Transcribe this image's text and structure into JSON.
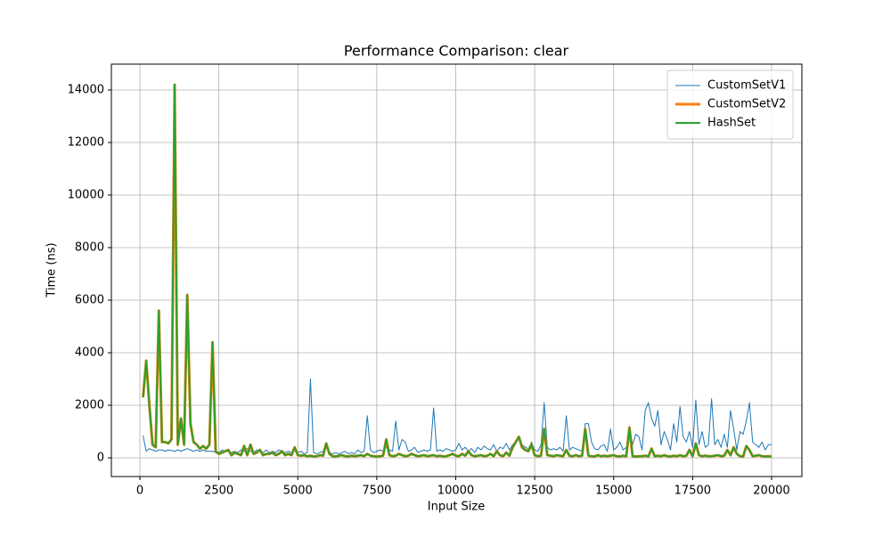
{
  "chart_data": {
    "type": "line",
    "title": "Performance Comparison: clear",
    "x_label": "Input Size",
    "y_label": "Time (ns)",
    "x": [
      100,
      200,
      300,
      400,
      500,
      600,
      700,
      800,
      900,
      1000,
      1100,
      1200,
      1300,
      1400,
      1500,
      1600,
      1700,
      1800,
      1900,
      2000,
      2100,
      2200,
      2300,
      2400,
      2500,
      2600,
      2700,
      2800,
      2900,
      3000,
      3100,
      3200,
      3300,
      3400,
      3500,
      3600,
      3700,
      3800,
      3900,
      4000,
      4100,
      4200,
      4300,
      4400,
      4500,
      4600,
      4700,
      4800,
      4900,
      5000,
      5100,
      5200,
      5300,
      5400,
      5500,
      5600,
      5700,
      5800,
      5900,
      6000,
      6100,
      6200,
      6300,
      6400,
      6500,
      6600,
      6700,
      6800,
      6900,
      7000,
      7100,
      7200,
      7300,
      7400,
      7500,
      7600,
      7700,
      7800,
      7900,
      8000,
      8100,
      8200,
      8300,
      8400,
      8500,
      8600,
      8700,
      8800,
      8900,
      9000,
      9100,
      9200,
      9300,
      9400,
      9500,
      9600,
      9700,
      9800,
      9900,
      10000,
      10100,
      10200,
      10300,
      10400,
      10500,
      10600,
      10700,
      10800,
      10900,
      11000,
      11100,
      11200,
      11300,
      11400,
      11500,
      11600,
      11700,
      11800,
      11900,
      12000,
      12100,
      12200,
      12300,
      12400,
      12500,
      12600,
      12700,
      12800,
      12900,
      13000,
      13100,
      13200,
      13300,
      13400,
      13500,
      13600,
      13700,
      13800,
      13900,
      14000,
      14100,
      14200,
      14300,
      14400,
      14500,
      14600,
      14700,
      14800,
      14900,
      15000,
      15100,
      15200,
      15300,
      15400,
      15500,
      15600,
      15700,
      15800,
      15900,
      16000,
      16100,
      16200,
      16300,
      16400,
      16500,
      16600,
      16700,
      16800,
      16900,
      17000,
      17100,
      17200,
      17300,
      17400,
      17500,
      17600,
      17700,
      17800,
      17900,
      18000,
      18100,
      18200,
      18300,
      18400,
      18500,
      18600,
      18700,
      18800,
      18900,
      19000,
      19100,
      19200,
      19300,
      19400,
      19500,
      19600,
      19700,
      19800,
      19900,
      20000
    ],
    "series": [
      {
        "name": "CustomSetV1",
        "color": "#1f77b4",
        "width": 1,
        "values": [
          850,
          250,
          350,
          300,
          250,
          300,
          300,
          250,
          300,
          280,
          250,
          300,
          250,
          300,
          350,
          300,
          250,
          300,
          250,
          300,
          250,
          250,
          250,
          200,
          200,
          300,
          250,
          250,
          200,
          250,
          200,
          300,
          250,
          350,
          250,
          200,
          300,
          250,
          200,
          300,
          200,
          250,
          200,
          300,
          250,
          200,
          250,
          200,
          300,
          200,
          250,
          150,
          200,
          3000,
          200,
          150,
          200,
          250,
          400,
          200,
          150,
          200,
          150,
          200,
          250,
          150,
          200,
          150,
          300,
          200,
          250,
          1600,
          300,
          200,
          250,
          300,
          250,
          400,
          300,
          250,
          1400,
          300,
          700,
          600,
          250,
          300,
          400,
          200,
          250,
          300,
          250,
          300,
          1900,
          250,
          300,
          250,
          350,
          300,
          250,
          300,
          550,
          300,
          400,
          250,
          350,
          200,
          400,
          300,
          450,
          350,
          300,
          500,
          250,
          400,
          350,
          550,
          300,
          500,
          600,
          750,
          500,
          400,
          350,
          600,
          300,
          250,
          500,
          2100,
          400,
          300,
          350,
          300,
          400,
          250,
          1600,
          300,
          400,
          350,
          300,
          250,
          1300,
          1300,
          600,
          350,
          300,
          450,
          500,
          250,
          1100,
          300,
          400,
          600,
          300,
          400,
          1200,
          500,
          900,
          800,
          300,
          1800,
          2100,
          1500,
          1200,
          1800,
          500,
          1000,
          700,
          300,
          1300,
          600,
          1950,
          800,
          600,
          1000,
          400,
          2200,
          500,
          1000,
          400,
          500,
          2250,
          500,
          700,
          400,
          900,
          400,
          1800,
          1100,
          300,
          1000,
          900,
          1400,
          2100,
          600,
          500,
          400,
          600,
          300,
          500,
          500
        ]
      },
      {
        "name": "CustomSetV2",
        "color": "#ff7f0e",
        "width": 3,
        "values": [
          2300,
          3700,
          2000,
          500,
          400,
          5600,
          600,
          600,
          550,
          700,
          14200,
          500,
          1500,
          500,
          6200,
          1300,
          600,
          500,
          350,
          450,
          350,
          500,
          4400,
          250,
          150,
          200,
          250,
          300,
          100,
          200,
          150,
          100,
          450,
          100,
          500,
          150,
          200,
          300,
          100,
          150,
          150,
          200,
          100,
          150,
          250,
          100,
          150,
          100,
          400,
          100,
          80,
          100,
          60,
          80,
          50,
          60,
          100,
          80,
          550,
          150,
          60,
          50,
          80,
          100,
          60,
          50,
          80,
          60,
          80,
          100,
          60,
          150,
          80,
          60,
          50,
          60,
          80,
          700,
          100,
          60,
          80,
          150,
          100,
          60,
          80,
          150,
          100,
          60,
          80,
          100,
          60,
          80,
          100,
          60,
          80,
          50,
          60,
          100,
          150,
          80,
          60,
          150,
          80,
          250,
          100,
          60,
          80,
          100,
          60,
          80,
          150,
          60,
          250,
          100,
          60,
          200,
          80,
          400,
          600,
          800,
          400,
          300,
          250,
          500,
          100,
          60,
          80,
          1100,
          100,
          80,
          60,
          100,
          80,
          60,
          300,
          80,
          60,
          100,
          60,
          80,
          1100,
          80,
          60,
          50,
          100,
          60,
          80,
          60,
          80,
          100,
          60,
          50,
          80,
          60,
          1150,
          60,
          50,
          60,
          60,
          80,
          50,
          350,
          60,
          80,
          60,
          100,
          60,
          50,
          80,
          60,
          100,
          60,
          80,
          300,
          60,
          550,
          100,
          60,
          80,
          60,
          60,
          80,
          100,
          60,
          80,
          300,
          100,
          400,
          150,
          60,
          50,
          450,
          300,
          60,
          80,
          100,
          60,
          50,
          60,
          50
        ]
      },
      {
        "name": "HashSet",
        "color": "#2ca02c",
        "width": 2,
        "values": [
          2300,
          3700,
          2000,
          500,
          400,
          5600,
          600,
          600,
          550,
          700,
          14200,
          500,
          1500,
          500,
          6200,
          1300,
          600,
          500,
          350,
          450,
          350,
          500,
          4400,
          250,
          150,
          200,
          250,
          300,
          100,
          200,
          150,
          100,
          450,
          100,
          500,
          150,
          200,
          300,
          100,
          150,
          150,
          200,
          100,
          150,
          250,
          100,
          150,
          100,
          400,
          100,
          80,
          100,
          60,
          80,
          50,
          60,
          100,
          80,
          550,
          150,
          60,
          50,
          80,
          100,
          60,
          50,
          80,
          60,
          80,
          100,
          60,
          150,
          80,
          60,
          50,
          60,
          80,
          700,
          100,
          60,
          80,
          150,
          100,
          60,
          80,
          150,
          100,
          60,
          80,
          100,
          60,
          80,
          100,
          60,
          80,
          50,
          60,
          100,
          150,
          80,
          60,
          150,
          80,
          250,
          100,
          60,
          80,
          100,
          60,
          80,
          150,
          60,
          250,
          100,
          60,
          200,
          80,
          400,
          600,
          800,
          400,
          300,
          250,
          500,
          100,
          60,
          80,
          1100,
          100,
          80,
          60,
          100,
          80,
          60,
          300,
          80,
          60,
          100,
          60,
          80,
          1100,
          80,
          60,
          50,
          100,
          60,
          80,
          60,
          80,
          100,
          60,
          50,
          80,
          60,
          1150,
          60,
          50,
          60,
          60,
          80,
          50,
          350,
          60,
          80,
          60,
          100,
          60,
          50,
          80,
          60,
          100,
          60,
          80,
          300,
          60,
          550,
          100,
          60,
          80,
          60,
          60,
          80,
          100,
          60,
          80,
          300,
          100,
          400,
          150,
          60,
          50,
          450,
          300,
          60,
          80,
          100,
          60,
          50,
          60,
          50
        ]
      }
    ],
    "xlim": [
      -903,
      20960
    ],
    "ylim": [
      -712,
      14983
    ],
    "xticks": [
      0,
      2500,
      5000,
      7500,
      10000,
      12500,
      15000,
      17500,
      20000
    ],
    "yticks": [
      0,
      2000,
      4000,
      6000,
      8000,
      10000,
      12000,
      14000
    ],
    "grid": true,
    "legend": "upper right"
  }
}
